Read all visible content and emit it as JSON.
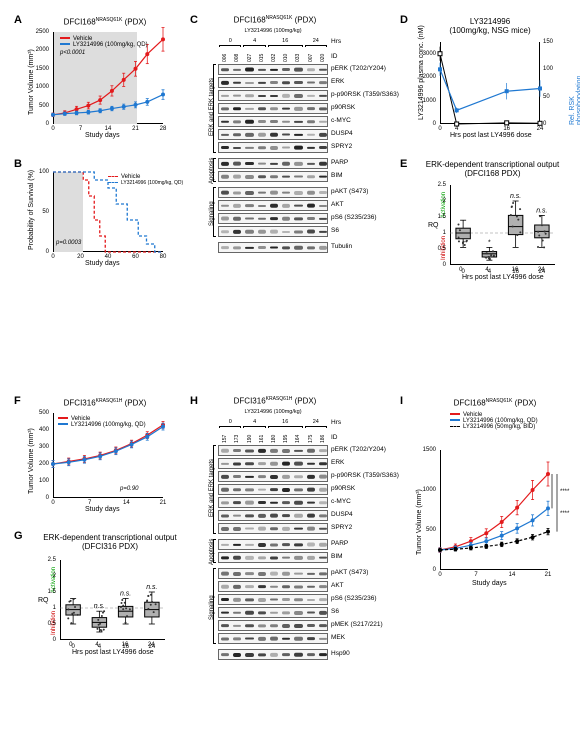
{
  "colors": {
    "vehicle": "#e31a1c",
    "drug": "#1f78d1",
    "bid": "#000000",
    "box_fill": "#b0b0b0",
    "grid": "#cccccc",
    "shade": "#dddddd"
  },
  "panelA": {
    "label": "A",
    "title": "DFCI168<sup>NRASQ61K</sup> (PDX)",
    "ylabel": "Tumor Volume (mm³)",
    "xlabel": "Study days",
    "ylim": [
      0,
      2500
    ],
    "ytick_step": 500,
    "xlim": [
      0,
      28
    ],
    "xticks": [
      0,
      7,
      14,
      21,
      28
    ],
    "p": "p<0.0001",
    "legend": {
      "vehicle": "Vehicle",
      "drug": "LY3214996 (100mg/kg, QD)"
    },
    "vehicle_x": [
      0,
      3,
      6,
      9,
      12,
      15,
      18,
      21,
      24,
      28
    ],
    "vehicle_y": [
      250,
      300,
      400,
      500,
      650,
      900,
      1200,
      1500,
      1900,
      2300
    ],
    "vehicle_err": [
      50,
      60,
      80,
      90,
      110,
      140,
      180,
      200,
      260,
      320
    ],
    "drug_x": [
      0,
      3,
      6,
      9,
      12,
      15,
      18,
      21,
      24,
      28
    ],
    "drug_y": [
      250,
      280,
      300,
      320,
      360,
      420,
      470,
      520,
      600,
      800
    ],
    "drug_err": [
      40,
      45,
      50,
      50,
      55,
      60,
      70,
      80,
      90,
      130
    ],
    "shade_end_day": 21
  },
  "panelB": {
    "label": "B",
    "ylabel": "Probability of Survival (%)",
    "xlabel": "Study days",
    "ylim": [
      0,
      100
    ],
    "ytick_step": 50,
    "xlim": [
      0,
      80
    ],
    "xticks": [
      0,
      20,
      40,
      60,
      80
    ],
    "p": "p=0.0003",
    "legend": {
      "vehicle": "Vehicle",
      "drug": "LY3214996 (100mg/kg, QD)"
    },
    "vehicle_steps": [
      [
        0,
        100
      ],
      [
        22,
        100
      ],
      [
        22,
        90
      ],
      [
        26,
        90
      ],
      [
        26,
        70
      ],
      [
        30,
        70
      ],
      [
        30,
        40
      ],
      [
        34,
        40
      ],
      [
        34,
        20
      ],
      [
        38,
        20
      ],
      [
        38,
        0
      ],
      [
        80,
        0
      ]
    ],
    "drug_steps": [
      [
        0,
        100
      ],
      [
        30,
        100
      ],
      [
        30,
        90
      ],
      [
        40,
        90
      ],
      [
        40,
        80
      ],
      [
        46,
        80
      ],
      [
        46,
        60
      ],
      [
        54,
        60
      ],
      [
        54,
        40
      ],
      [
        62,
        40
      ],
      [
        62,
        20
      ],
      [
        68,
        20
      ],
      [
        68,
        10
      ],
      [
        74,
        10
      ],
      [
        74,
        0
      ],
      [
        80,
        0
      ]
    ],
    "shade_end_day": 21
  },
  "panelC": {
    "label": "C",
    "title": "DFCI168<sup>NRASQ61K</sup> (PDX)",
    "subtitle": "LY3214996 (100mg/kg)",
    "hrs_header": "Hrs",
    "hrs": [
      "0",
      "4",
      "16",
      "24"
    ],
    "ids": [
      "006",
      "008",
      "027",
      "015",
      "032",
      "010",
      "033",
      "007",
      "020"
    ],
    "sections": [
      {
        "name": "ERK and ERK targets",
        "rows": [
          "pERK (T202/Y204)",
          "ERK",
          "p-p90RSK (T359/S363)",
          "p90RSK",
          "c-MYC",
          "DUSP4",
          "SPRY2"
        ]
      },
      {
        "name": "Apoptosis",
        "rows": [
          "PARP",
          "BIM"
        ]
      },
      {
        "name": "Signaling",
        "rows": [
          "pAKT (S473)",
          "AKT",
          "pS6 (S235/236)",
          "S6"
        ]
      }
    ],
    "loading": "Tubulin",
    "id_label": "ID"
  },
  "panelD": {
    "label": "D",
    "title": "LY3214996\n(100mg/kg, NSG mice)",
    "ylabel_left": "LY3214996 plasma conc. (nM)",
    "ylabel_right": "Rel. RSK phosphorylation (%)",
    "xlabel": "Hrs post last LY4996 dose",
    "ylim_left": [
      0,
      3500
    ],
    "ytick_left": [
      0,
      1000,
      2000,
      3000
    ],
    "ylim_right": [
      0,
      150
    ],
    "ytick_right": [
      0,
      50,
      100,
      150
    ],
    "xlim": [
      0,
      24
    ],
    "xticks": [
      0,
      4,
      16,
      24
    ],
    "pk_x": [
      0,
      4,
      16,
      24
    ],
    "pk_y": [
      3000,
      0,
      50,
      30
    ],
    "pk_err": [
      300,
      40,
      30,
      30
    ],
    "pd_x": [
      0,
      4,
      16,
      24
    ],
    "pd_y": [
      100,
      25,
      60,
      65
    ],
    "pd_err": [
      12,
      5,
      15,
      15
    ]
  },
  "panelE": {
    "label": "E",
    "title": "ERK-dependent transcriptional output\n(DFCI168 PDX)",
    "ylabel": "RQ",
    "xlabel": "Hrs post last LY4996 dose",
    "ylim": [
      0,
      2.5
    ],
    "ytick_step": 0.5,
    "groups": [
      "0",
      "4",
      "16",
      "24"
    ],
    "boxes": [
      {
        "q1": 0.82,
        "med": 1.0,
        "q3": 1.15,
        "lo": 0.55,
        "hi": 1.4,
        "ann": ""
      },
      {
        "q1": 0.25,
        "med": 0.35,
        "q3": 0.42,
        "lo": 0.15,
        "hi": 0.55,
        "ann": "*"
      },
      {
        "q1": 0.95,
        "med": 1.2,
        "q3": 1.55,
        "lo": 0.55,
        "hi": 2.0,
        "ann": "n.s."
      },
      {
        "q1": 0.85,
        "med": 1.05,
        "q3": 1.25,
        "lo": 0.55,
        "hi": 1.55,
        "ann": "n.s."
      }
    ],
    "activation": "Activation",
    "inhibition": "Inhibition"
  },
  "panelF": {
    "label": "F",
    "title": "DFCI316<sup>KRASQ61H</sup> (PDX)",
    "ylabel": "Tumor Volume (mm³)",
    "xlabel": "Study days",
    "ylim": [
      0,
      500
    ],
    "yticks": [
      0,
      100,
      200,
      300,
      400,
      500
    ],
    "xlim": [
      0,
      21
    ],
    "xticks": [
      0,
      7,
      14,
      21
    ],
    "p": "p=0.90",
    "legend": {
      "vehicle": "Vehicle",
      "drug": "LY3214996 (100mg/kg, QD)"
    },
    "vehicle_x": [
      0,
      3,
      6,
      9,
      12,
      15,
      18,
      21
    ],
    "vehicle_y": [
      200,
      215,
      230,
      250,
      280,
      320,
      370,
      430
    ],
    "drug_x": [
      0,
      3,
      6,
      9,
      12,
      15,
      18,
      21
    ],
    "drug_y": [
      200,
      210,
      225,
      245,
      275,
      315,
      360,
      420
    ],
    "err": 20
  },
  "panelG": {
    "label": "G",
    "title": "ERK-dependent transcriptional output\n(DFCI316 PDX)",
    "ylabel": "RQ",
    "xlabel": "Hrs post last LY4996 dose",
    "ylim": [
      0,
      2.5
    ],
    "ytick_step": 0.5,
    "groups": [
      "0",
      "4",
      "16",
      "24"
    ],
    "boxes": [
      {
        "q1": 0.78,
        "med": 0.95,
        "q3": 1.1,
        "lo": 0.5,
        "hi": 1.3,
        "ann": ""
      },
      {
        "q1": 0.4,
        "med": 0.55,
        "q3": 0.7,
        "lo": 0.25,
        "hi": 0.9,
        "ann": "n.s."
      },
      {
        "q1": 0.72,
        "med": 0.9,
        "q3": 1.05,
        "lo": 0.5,
        "hi": 1.3,
        "ann": "n.s."
      },
      {
        "q1": 0.72,
        "med": 0.95,
        "q3": 1.18,
        "lo": 0.5,
        "hi": 1.5,
        "ann": "n.s."
      }
    ],
    "activation": "Activation",
    "inhibition": "Inhibition"
  },
  "panelH": {
    "label": "H",
    "title": "DFCI316<sup>KRASQ61H</sup> (PDX)",
    "subtitle": "LY3214996 (100mg/kg)",
    "hrs_header": "Hrs",
    "hrs": [
      "0",
      "4",
      "16",
      "24"
    ],
    "ids": [
      "157",
      "173",
      "190",
      "161",
      "180",
      "195",
      "164",
      "175",
      "186"
    ],
    "sections": [
      {
        "name": "ERK and ERK targets",
        "rows": [
          "pERK (T202/Y204)",
          "ERK",
          "p-p90RSK (T359/S363)",
          "p90RSK",
          "c-MYC",
          "DUSP4",
          "SPRY2"
        ]
      },
      {
        "name": "Apoptosis",
        "rows": [
          "PARP",
          "BIM"
        ]
      },
      {
        "name": "Signaling",
        "rows": [
          "pAKT (S473)",
          "AKT",
          "pS6 (S235/236)",
          "S6",
          "pMEK (S217/221)",
          "MEK"
        ]
      }
    ],
    "loading": "Hsp90",
    "id_label": "ID"
  },
  "panelI": {
    "label": "I",
    "title": "DFCI168<sup>NRASQ61K</sup> (PDX)",
    "ylabel": "Tumor Volume (mm³)",
    "xlabel": "Study days",
    "ylim": [
      0,
      1500
    ],
    "ytick_step": 500,
    "xlim": [
      0,
      21
    ],
    "xticks": [
      0,
      7,
      14,
      21
    ],
    "legend": {
      "vehicle": "Vehicle",
      "qd": "LY3214996 (100mg/kg, QD)",
      "bid": "LY3214996 (50mg/kg, BID)"
    },
    "vehicle_x": [
      0,
      3,
      6,
      9,
      12,
      15,
      18,
      21
    ],
    "vehicle_y": [
      250,
      290,
      360,
      460,
      600,
      780,
      1000,
      1200
    ],
    "vehicle_err": [
      30,
      35,
      45,
      55,
      70,
      90,
      120,
      150
    ],
    "qd_x": [
      0,
      3,
      6,
      9,
      12,
      15,
      18,
      21
    ],
    "qd_y": [
      250,
      270,
      310,
      360,
      430,
      520,
      620,
      770
    ],
    "qd_err": [
      25,
      30,
      35,
      40,
      50,
      60,
      70,
      90
    ],
    "bid_x": [
      0,
      3,
      6,
      9,
      12,
      15,
      18,
      21
    ],
    "bid_y": [
      250,
      260,
      275,
      295,
      320,
      360,
      410,
      480
    ],
    "bid_err": [
      20,
      22,
      24,
      26,
      28,
      30,
      34,
      40
    ],
    "sig_qd": "****",
    "sig_bid": "****"
  }
}
